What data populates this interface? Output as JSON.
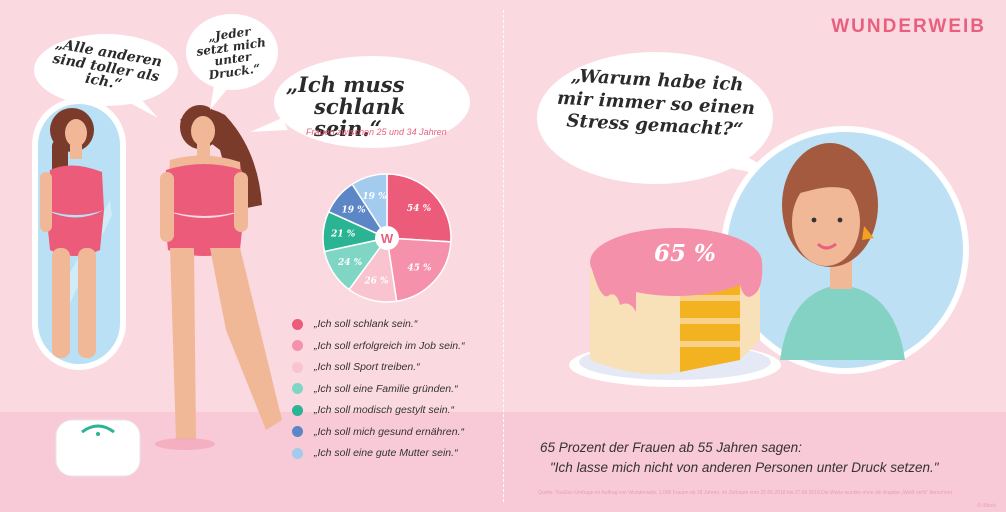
{
  "brand": "WUNDERWEIB",
  "bubbles": {
    "others": [
      "„Alle anderen",
      "sind toller als ich.“"
    ],
    "pressure": [
      "„Jeder",
      "setzt mich",
      "unter Druck.“"
    ],
    "slim": [
      "„Ich muss",
      "schlank sein.“"
    ],
    "stress": [
      "„Warum habe ich",
      "mir  immer so einen",
      "Stress gemacht?“"
    ]
  },
  "subtitle": "Frauen zwischen 25 und 34 Jahren",
  "chart_data": {
    "type": "pie",
    "center_logo": "W",
    "slices": [
      {
        "label": "„Ich soll schlank sein.“",
        "value": 54,
        "display": "54 %",
        "color": "#ec5b7a"
      },
      {
        "label": "„Ich soll erfolgreich im Job sein.“",
        "value": 45,
        "display": "45 %",
        "color": "#f591aa"
      },
      {
        "label": "„Ich soll Sport treiben.“",
        "value": 26,
        "display": "26 %",
        "color": "#f9c3cf"
      },
      {
        "label": "„Ich soll eine Familie gründen.“",
        "value": 24,
        "display": "24 %",
        "color": "#80d6c5"
      },
      {
        "label": "„Ich soll modisch gestylt sein.“",
        "value": 21,
        "display": "21 %",
        "color": "#2bb494"
      },
      {
        "label": "„Ich soll mich gesund ernähren.“",
        "value": 19,
        "display": "19 %",
        "color": "#5d86c6"
      },
      {
        "label": "„Ich soll eine gute Mutter sein.“",
        "value": 19,
        "display": "19 %",
        "color": "#a3cbee"
      }
    ]
  },
  "cake_percent": "65 %",
  "stat": {
    "line1": "65 Prozent der Frauen ab 55 Jahren sagen:",
    "line2": "\"Ich lasse mich nicht von anderen Personen unter Druck setzen.\""
  },
  "source": "Quelle: YouGov-Umfrage im Auftrag von Wunderweib, 1.006 Frauen ab 18 Jahren, im Zeitraum vom 25.06.2018 bis 27.06.2018.Die Werte wurden ohne die Angabe „Weiß nicht“ berechnet.",
  "credit": "© iStock",
  "colors": {
    "accent": "#e8607e",
    "background": "#fbd9e1"
  }
}
